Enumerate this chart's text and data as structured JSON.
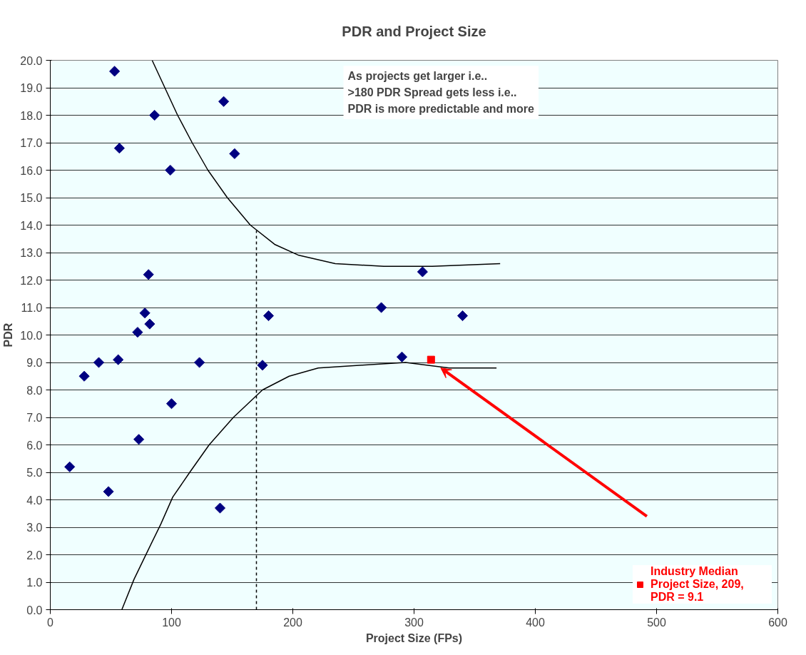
{
  "chart_data": {
    "type": "scatter",
    "title": "PDR and Project Size",
    "xlabel": "Project Size (FPs)",
    "ylabel": "PDR",
    "xlim": [
      0,
      600
    ],
    "xticks": [
      0,
      100,
      200,
      300,
      400,
      500,
      600
    ],
    "ylim": [
      0,
      20
    ],
    "yticks": [
      {
        "value": 0,
        "label": "0.0"
      },
      {
        "value": 1,
        "label": "1.0"
      },
      {
        "value": 2,
        "label": "2.0"
      },
      {
        "value": 3,
        "label": "3.0"
      },
      {
        "value": 4,
        "label": "4.0"
      },
      {
        "value": 5,
        "label": "5.0"
      },
      {
        "value": 6,
        "label": "6.0"
      },
      {
        "value": 7,
        "label": "7.0"
      },
      {
        "value": 8,
        "label": "8.0"
      },
      {
        "value": 9,
        "label": "9.0"
      },
      {
        "value": 10,
        "label": "10.0"
      },
      {
        "value": 11,
        "label": "11.0"
      },
      {
        "value": 12,
        "label": "12.0"
      },
      {
        "value": 13,
        "label": "13.0"
      },
      {
        "value": 14,
        "label": "14.0"
      },
      {
        "value": 15,
        "label": "15.0"
      },
      {
        "value": 16,
        "label": "16.0"
      },
      {
        "value": 17,
        "label": "17.0"
      },
      {
        "value": 18,
        "label": "18.0"
      },
      {
        "value": 19,
        "label": "19.0"
      },
      {
        "value": 20,
        "label": "20.0"
      }
    ],
    "grid": "y",
    "legend": "bottom right",
    "marker": "diamond",
    "series": [
      {
        "color": "#000080",
        "x": [
          53,
          86,
          57,
          99,
          143,
          152,
          81,
          78,
          82,
          72,
          180,
          16,
          28,
          40,
          48,
          56,
          73,
          100,
          123,
          140,
          175,
          307,
          273,
          340,
          290
        ],
        "values": [
          19.6,
          18.0,
          16.8,
          16.0,
          18.5,
          16.6,
          12.2,
          10.8,
          10.4,
          10.1,
          10.7,
          5.2,
          8.5,
          9.0,
          4.3,
          9.1,
          6.2,
          7.5,
          9.0,
          3.7,
          8.9,
          12.3,
          11.0,
          10.7,
          9.2
        ]
      },
      {
        "name": "Industry Median Project Size, 209, PDR = 9.1",
        "color": "#ff0000",
        "marker": "square",
        "x": [
          314
        ],
        "values": [
          9.1
        ]
      },
      {
        "type": "line",
        "color": "#000000",
        "marker": "none",
        "x": [
          84,
          105,
          117,
          130,
          146,
          165,
          185,
          205,
          235,
          275,
          315,
          371
        ],
        "values": [
          20,
          18,
          17,
          16,
          15,
          14,
          13.3,
          12.9,
          12.6,
          12.5,
          12.5,
          12.6
        ]
      },
      {
        "type": "line",
        "color": "#000000",
        "marker": "none",
        "x": [
          59,
          69,
          81,
          91,
          101,
          115,
          131,
          151,
          175,
          197,
          221,
          257,
          293,
          329,
          368
        ],
        "values": [
          0,
          1.1,
          2.2,
          3.1,
          4.1,
          5.0,
          6.0,
          7.0,
          8.0,
          8.5,
          8.8,
          8.9,
          9.0,
          8.8,
          8.8
        ]
      },
      {
        "type": "line",
        "color": "#000000",
        "marker": "none",
        "line_style": "dashed",
        "x": [
          170,
          170
        ],
        "values": [
          0,
          13.8
        ]
      }
    ],
    "annotations": [
      "As projects get larger i.e.. >180 PDR Spread gets less i.e.. PDR is more predictable and more"
    ]
  }
}
